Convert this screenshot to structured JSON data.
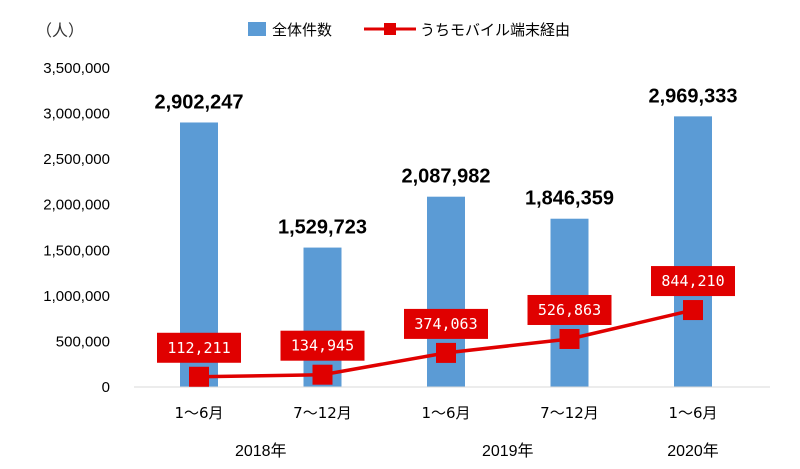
{
  "chart_data": {
    "type": "bar+line",
    "unit_label": "（人）",
    "categories": [
      "1〜6月",
      "7〜12月",
      "1〜6月",
      "7〜12月",
      "1〜6月"
    ],
    "years": [
      {
        "label": "2018年",
        "start": 0,
        "end": 1
      },
      {
        "label": "2019年",
        "start": 2,
        "end": 3
      },
      {
        "label": "2020年",
        "start": 4,
        "end": 4
      }
    ],
    "series": [
      {
        "name": "全体件数",
        "type": "bar",
        "color": "#5B9BD5",
        "values": [
          2902247,
          1529723,
          2087982,
          1846359,
          2969333
        ],
        "labels": [
          "2,902,247",
          "1,529,723",
          "2,087,982",
          "1,846,359",
          "2,969,333"
        ]
      },
      {
        "name": "うちモバイル端末経由",
        "type": "line",
        "color": "#E00000",
        "values": [
          112211,
          134945,
          374063,
          526863,
          844210
        ],
        "labels": [
          "112,211",
          "134,945",
          "374,063",
          "526,863",
          "844,210"
        ]
      }
    ],
    "y_ticks": [
      0,
      500000,
      1000000,
      1500000,
      2000000,
      2500000,
      3000000,
      3500000
    ],
    "y_tick_labels": [
      "0",
      "500,000",
      "1,000,000",
      "1,500,000",
      "2,000,000",
      "2,500,000",
      "3,000,000",
      "3,500,000"
    ],
    "ylim": [
      0,
      3500000
    ],
    "grid": false,
    "legend_position": "top"
  }
}
